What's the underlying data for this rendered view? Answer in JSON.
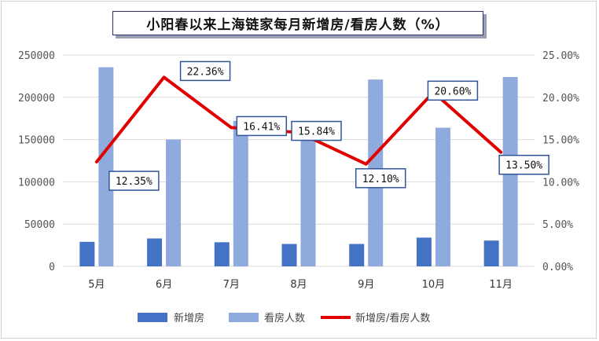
{
  "chart_data": {
    "type": "bar",
    "title": "小阳春以来上海链家每月新增房/看房人数（%）",
    "categories": [
      "5月",
      "6月",
      "7月",
      "8月",
      "9月",
      "10月",
      "11月"
    ],
    "series": [
      {
        "name": "新增房",
        "type": "bar",
        "axis": "left",
        "color": "#4472c4",
        "values": [
          29000,
          33000,
          28500,
          26500,
          26500,
          34000,
          30500
        ]
      },
      {
        "name": "看房人数",
        "type": "bar",
        "axis": "left",
        "color": "#8faadc",
        "values": [
          235500,
          150000,
          172000,
          168500,
          221000,
          164000,
          224000
        ]
      },
      {
        "name": "新增房/看房人数",
        "type": "line",
        "axis": "right",
        "color": "#e00000",
        "values": [
          12.35,
          22.36,
          16.41,
          15.84,
          12.1,
          20.6,
          13.5
        ],
        "labels": [
          "12.35%",
          "22.36%",
          "16.41%",
          "15.84%",
          "12.10%",
          "20.60%",
          "13.50%"
        ]
      }
    ],
    "y_left": {
      "min": 0,
      "max": 250000,
      "ticks": [
        "0",
        "50000",
        "100000",
        "150000",
        "200000",
        "250000"
      ]
    },
    "y_right": {
      "min": 0,
      "max": 25,
      "ticks": [
        "0.00%",
        "5.00%",
        "10.00%",
        "15.00%",
        "20.00%",
        "25.00%"
      ]
    },
    "grid": true,
    "legend": "bottom"
  }
}
